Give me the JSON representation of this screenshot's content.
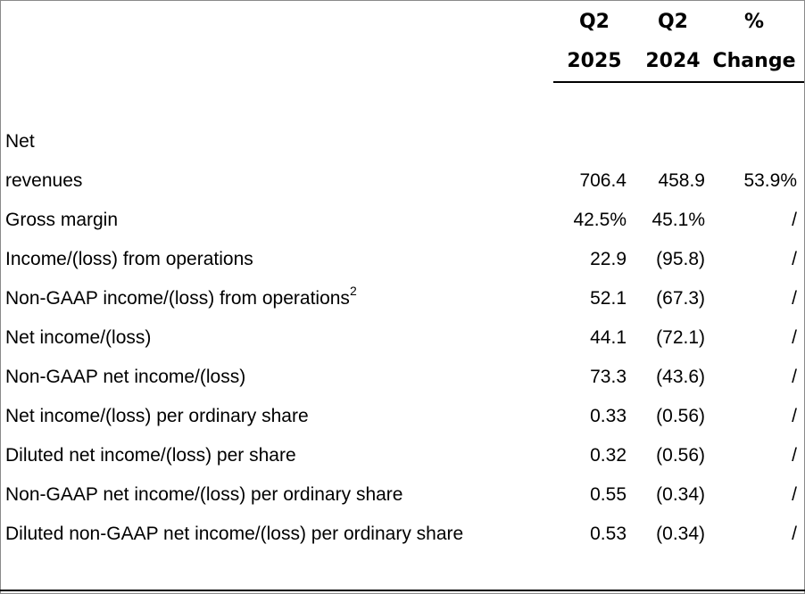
{
  "header": {
    "col_q2_2025": [
      "Q2",
      "2025"
    ],
    "col_q2_2024": [
      "Q2",
      "2024"
    ],
    "col_change": [
      "%",
      "Change"
    ]
  },
  "rows": [
    {
      "label": "Net",
      "label2": "revenues",
      "q2_2025": "706.4",
      "q2_2024": "458.9",
      "change": "53.9%"
    },
    {
      "label": "Gross margin",
      "q2_2025": "42.5%",
      "q2_2024": "45.1%",
      "change": "/"
    },
    {
      "label": "Income/(loss) from operations",
      "q2_2025": "22.9",
      "q2_2024": "(95.8)",
      "change": "/"
    },
    {
      "label": "Non-GAAP income/(loss) from operations",
      "footnote": "2",
      "q2_2025": "52.1",
      "q2_2024": "(67.3)",
      "change": "/"
    },
    {
      "label": "Net income/(loss)",
      "q2_2025": "44.1",
      "q2_2024": "(72.1)",
      "change": "/"
    },
    {
      "label": "Non-GAAP net income/(loss)",
      "q2_2025": "73.3",
      "q2_2024": "(43.6)",
      "change": "/"
    },
    {
      "label": "Net income/(loss) per ordinary share",
      "q2_2025": "0.33",
      "q2_2024": "(0.56)",
      "change": "/"
    },
    {
      "label": "Diluted net income/(loss) per share",
      "q2_2025": "0.32",
      "q2_2024": "(0.56)",
      "change": "/"
    },
    {
      "label": "Non-GAAP net income/(loss) per ordinary share",
      "q2_2025": "0.55",
      "q2_2024": "(0.34)",
      "change": "/"
    },
    {
      "label": "Diluted non-GAAP net income/(loss) per ordinary share",
      "q2_2025": "0.53",
      "q2_2024": "(0.34)",
      "change": "/"
    }
  ]
}
